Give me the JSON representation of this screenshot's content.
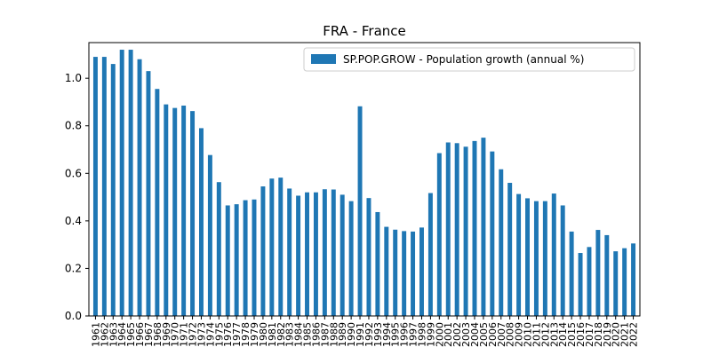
{
  "chart_data": {
    "type": "bar",
    "title": "FRA - France",
    "xlabel": "",
    "ylabel": "",
    "ylim": [
      0,
      1.15
    ],
    "yticks": [
      0.0,
      0.2,
      0.4,
      0.6,
      0.8,
      1.0
    ],
    "ytick_labels": [
      "0.0",
      "0.2",
      "0.4",
      "0.6",
      "0.8",
      "1.0"
    ],
    "legend_position": "top-right",
    "grid": false,
    "bar_color": "#1f77b4",
    "categories": [
      "1961",
      "1962",
      "1963",
      "1964",
      "1965",
      "1966",
      "1967",
      "1968",
      "1969",
      "1970",
      "1971",
      "1972",
      "1973",
      "1974",
      "1975",
      "1976",
      "1977",
      "1978",
      "1979",
      "1980",
      "1981",
      "1982",
      "1983",
      "1984",
      "1985",
      "1986",
      "1987",
      "1988",
      "1989",
      "1990",
      "1991",
      "1992",
      "1993",
      "1994",
      "1995",
      "1996",
      "1997",
      "1998",
      "1999",
      "2000",
      "2001",
      "2002",
      "2003",
      "2004",
      "2005",
      "2006",
      "2007",
      "2008",
      "2009",
      "2010",
      "2011",
      "2012",
      "2013",
      "2014",
      "2015",
      "2016",
      "2017",
      "2018",
      "2019",
      "2020",
      "2021",
      "2022"
    ],
    "series": [
      {
        "name": "SP.POP.GROW - Population growth (annual %)",
        "values": [
          1.09,
          1.09,
          1.06,
          1.12,
          1.12,
          1.08,
          1.03,
          0.955,
          0.89,
          0.875,
          0.885,
          0.862,
          0.79,
          0.677,
          0.563,
          0.465,
          0.47,
          0.487,
          0.49,
          0.545,
          0.578,
          0.582,
          0.536,
          0.506,
          0.52,
          0.52,
          0.533,
          0.532,
          0.51,
          0.483,
          0.882,
          0.496,
          0.437,
          0.375,
          0.363,
          0.357,
          0.355,
          0.372,
          0.517,
          0.685,
          0.73,
          0.727,
          0.712,
          0.736,
          0.75,
          0.692,
          0.617,
          0.56,
          0.513,
          0.495,
          0.483,
          0.483,
          0.515,
          0.465,
          0.355,
          0.265,
          0.29,
          0.362,
          0.34,
          0.272,
          0.285,
          0.305
        ]
      }
    ]
  }
}
